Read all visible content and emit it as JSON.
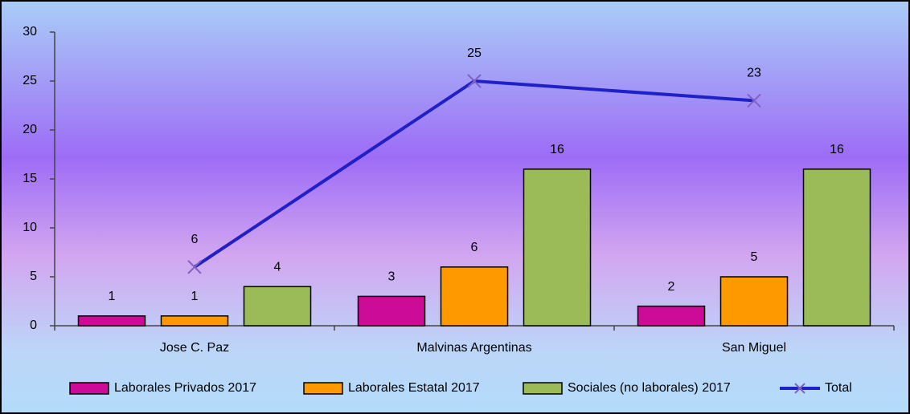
{
  "chart_data": {
    "type": "bar",
    "categories": [
      "Jose C. Paz",
      "Malvinas Argentinas",
      "San Miguel"
    ],
    "series": [
      {
        "name": "Laborales Privados 2017",
        "color": "#cc0c99",
        "values": [
          1,
          3,
          2
        ]
      },
      {
        "name": "Laborales Estatal 2017",
        "color": "#ff9900",
        "values": [
          1,
          6,
          5
        ]
      },
      {
        "name": "Sociales (no laborales) 2017",
        "color": "#9bbb59",
        "values": [
          4,
          16,
          16
        ]
      },
      {
        "name": "Total",
        "type": "line",
        "color": "#2020c8",
        "values": [
          6,
          25,
          23
        ]
      }
    ],
    "ylim": [
      0,
      30
    ],
    "yticks": [
      0,
      5,
      10,
      15,
      20,
      25,
      30
    ],
    "legend": "bottom"
  }
}
